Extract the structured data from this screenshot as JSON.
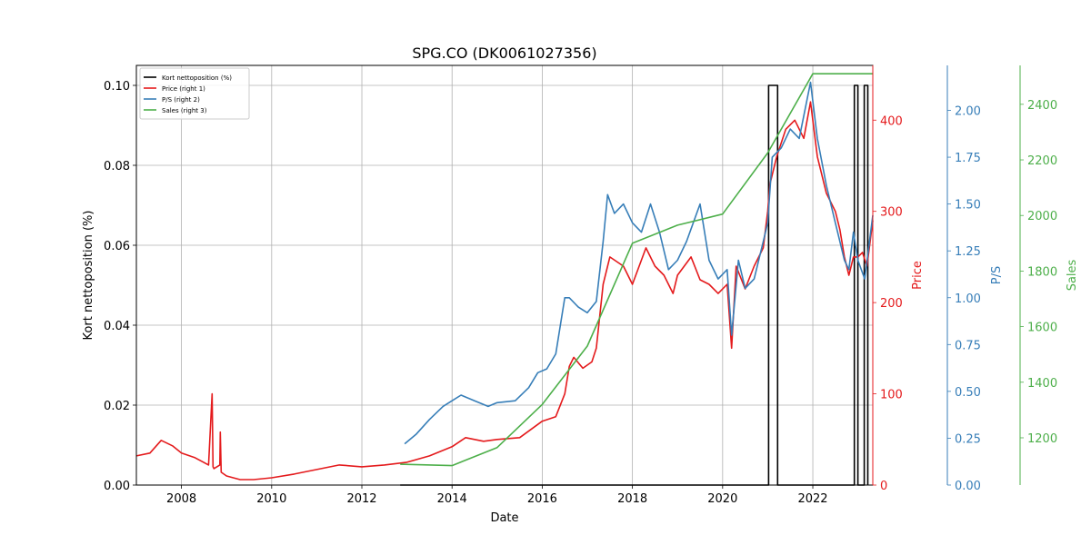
{
  "chart_data": {
    "type": "line",
    "title": "SPG.CO (DK0061027356)",
    "xlabel": "Date",
    "xlim": [
      2007.0,
      2023.33
    ],
    "x_ticks": [
      2008,
      2010,
      2012,
      2014,
      2016,
      2018,
      2020,
      2022
    ],
    "legend_position": "top-left",
    "grid": true,
    "axes": {
      "left": {
        "label": "Kort nettoposition (%)",
        "ylim": [
          0,
          0.105
        ],
        "ticks": [
          "0.00",
          "0.02",
          "0.04",
          "0.06",
          "0.08",
          "0.10"
        ],
        "color": "#000000"
      },
      "right1": {
        "label": "Price",
        "ylim": [
          0,
          460
        ],
        "ticks": [
          "0",
          "100",
          "200",
          "300",
          "400"
        ],
        "color": "#e41a1c"
      },
      "right2": {
        "label": "P/S",
        "ylim": [
          0,
          2.24
        ],
        "ticks": [
          "0.00",
          "0.25",
          "0.50",
          "0.75",
          "1.00",
          "1.25",
          "1.50",
          "1.75",
          "2.00"
        ],
        "color": "#377eb8"
      },
      "right3": {
        "label": "Sales",
        "ylim": [
          1030,
          2540
        ],
        "ticks": [
          "1200",
          "1400",
          "1600",
          "1800",
          "2000",
          "2200",
          "2400"
        ],
        "color": "#4daf4a"
      }
    },
    "series": [
      {
        "name": "Kort nettoposition (%)",
        "axis": "left",
        "color": "#000000",
        "step": true,
        "x": [
          2012.85,
          2021.0,
          2021.02,
          2021.2,
          2021.22,
          2022.9,
          2022.92,
          2022.98,
          2023.0,
          2023.02,
          2023.04,
          2023.12,
          2023.14,
          2023.2,
          2023.22
        ],
        "values": [
          0,
          0,
          0.1,
          0.1,
          0,
          0,
          0.1,
          0.1,
          0,
          0,
          0,
          0,
          0.1,
          0.1,
          0
        ]
      },
      {
        "name": "Price (right 1)",
        "axis": "right1",
        "color": "#e41a1c",
        "x": [
          2007.0,
          2007.3,
          2007.55,
          2007.8,
          2008.0,
          2008.3,
          2008.6,
          2008.68,
          2008.7,
          2008.72,
          2008.85,
          2008.86,
          2008.88,
          2009.0,
          2009.3,
          2009.6,
          2010.0,
          2010.5,
          2011.0,
          2011.5,
          2012.0,
          2012.5,
          2013.0,
          2013.5,
          2014.0,
          2014.3,
          2014.7,
          2015.0,
          2015.5,
          2016.0,
          2016.3,
          2016.5,
          2016.6,
          2016.7,
          2016.9,
          2017.1,
          2017.2,
          2017.35,
          2017.5,
          2017.8,
          2018.0,
          2018.3,
          2018.5,
          2018.7,
          2018.9,
          2019.0,
          2019.3,
          2019.5,
          2019.7,
          2019.9,
          2020.1,
          2020.2,
          2020.3,
          2020.5,
          2020.7,
          2020.9,
          2021.0,
          2021.05,
          2021.2,
          2021.4,
          2021.6,
          2021.8,
          2021.95,
          2022.1,
          2022.3,
          2022.5,
          2022.6,
          2022.7,
          2022.8,
          2022.9,
          2023.0,
          2023.1,
          2023.2,
          2023.33
        ],
        "values": [
          32,
          35,
          49,
          43,
          35,
          30,
          22,
          100,
          20,
          18,
          22,
          58,
          14,
          10,
          6,
          6,
          8,
          12,
          17,
          22,
          20,
          22,
          25,
          32,
          42,
          52,
          48,
          50,
          52,
          70,
          75,
          100,
          130,
          140,
          128,
          135,
          150,
          220,
          250,
          240,
          220,
          260,
          240,
          230,
          210,
          230,
          250,
          225,
          220,
          210,
          220,
          150,
          240,
          215,
          240,
          260,
          300,
          330,
          360,
          390,
          400,
          380,
          420,
          360,
          320,
          300,
          280,
          250,
          230,
          250,
          250,
          255,
          240,
          290
        ]
      },
      {
        "name": "P/S (right 2)",
        "axis": "right2",
        "color": "#377eb8",
        "x": [
          2012.95,
          2013.2,
          2013.5,
          2013.8,
          2014.0,
          2014.2,
          2014.5,
          2014.8,
          2015.0,
          2015.4,
          2015.7,
          2015.9,
          2016.1,
          2016.3,
          2016.5,
          2016.6,
          2016.8,
          2017.0,
          2017.2,
          2017.35,
          2017.45,
          2017.6,
          2017.8,
          2018.0,
          2018.2,
          2018.4,
          2018.6,
          2018.8,
          2019.0,
          2019.2,
          2019.5,
          2019.7,
          2019.9,
          2020.1,
          2020.2,
          2020.35,
          2020.5,
          2020.7,
          2020.9,
          2021.0,
          2021.1,
          2021.3,
          2021.5,
          2021.7,
          2021.95,
          2022.1,
          2022.3,
          2022.5,
          2022.7,
          2022.8,
          2022.9,
          2023.0,
          2023.15,
          2023.33
        ],
        "values": [
          0.22,
          0.27,
          0.35,
          0.42,
          0.45,
          0.48,
          0.45,
          0.42,
          0.44,
          0.45,
          0.52,
          0.6,
          0.62,
          0.7,
          1.0,
          1.0,
          0.95,
          0.92,
          0.98,
          1.3,
          1.55,
          1.45,
          1.5,
          1.4,
          1.35,
          1.5,
          1.35,
          1.15,
          1.2,
          1.3,
          1.5,
          1.2,
          1.1,
          1.15,
          0.8,
          1.2,
          1.05,
          1.1,
          1.3,
          1.4,
          1.75,
          1.8,
          1.9,
          1.85,
          2.15,
          1.85,
          1.6,
          1.4,
          1.2,
          1.15,
          1.35,
          1.2,
          1.1,
          1.44
        ]
      },
      {
        "name": "Sales (right 3)",
        "axis": "right3",
        "color": "#4daf4a",
        "x": [
          2012.85,
          2014.0,
          2015.0,
          2016.0,
          2017.0,
          2018.0,
          2019.0,
          2020.0,
          2021.0,
          2022.0,
          2023.33
        ],
        "values": [
          1105,
          1100,
          1165,
          1320,
          1530,
          1900,
          1965,
          2005,
          2225,
          2510,
          2510
        ]
      }
    ],
    "legend": [
      "Kort nettoposition (%)",
      "Price (right 1)",
      "P/S (right 2)",
      "Sales (right 3)"
    ]
  }
}
